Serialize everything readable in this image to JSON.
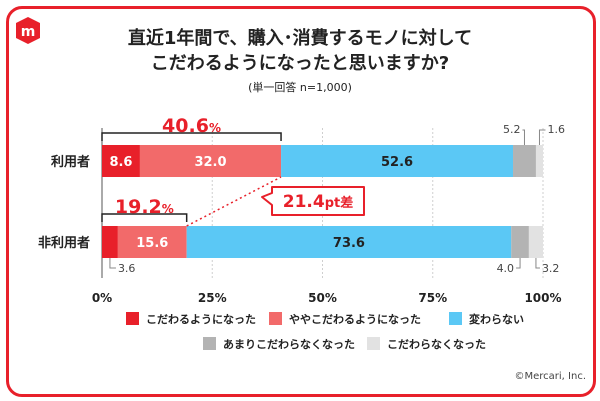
{
  "title_line1": "直近1年間で、購入･消費するモノに対して",
  "title_line2": "こだわるようになったと思いますか?",
  "subtitle": "(単一回答 n=1,000)",
  "copyright": "©Mercari, Inc.",
  "brand_color": "#e8202a",
  "chart_data": {
    "type": "bar",
    "orientation": "horizontal",
    "stacked": true,
    "categories": [
      "利用者",
      "非利用者"
    ],
    "series": [
      {
        "name": "こだわるようになった",
        "color": "#e8202a",
        "values": [
          8.6,
          3.6
        ]
      },
      {
        "name": "ややこだわるようになった",
        "color": "#f26a6a",
        "values": [
          32.0,
          15.6
        ]
      },
      {
        "name": "変わらない",
        "color": "#5bc8f5",
        "values": [
          52.6,
          73.6
        ]
      },
      {
        "name": "あまりこだわらなくなった",
        "color": "#b3b3b3",
        "values": [
          5.2,
          4.0
        ]
      },
      {
        "name": "こだわらなくなった",
        "color": "#e2e2e2",
        "values": [
          1.6,
          3.2
        ]
      }
    ],
    "value_labels": [
      [
        "8.6",
        "32.0",
        "52.6",
        "5.2",
        "1.6"
      ],
      [
        "3.6",
        "15.6",
        "73.6",
        "4.0",
        "3.2"
      ]
    ],
    "group_totals": [
      {
        "num": "40.6",
        "unit": "%"
      },
      {
        "num": "19.2",
        "unit": "%"
      }
    ],
    "difference": {
      "num": "21.4",
      "unit": "pt差"
    },
    "xticks": [
      "0%",
      "25%",
      "50%",
      "75%",
      "100%"
    ],
    "xlim": [
      0,
      100
    ],
    "legend_position": "bottom"
  }
}
